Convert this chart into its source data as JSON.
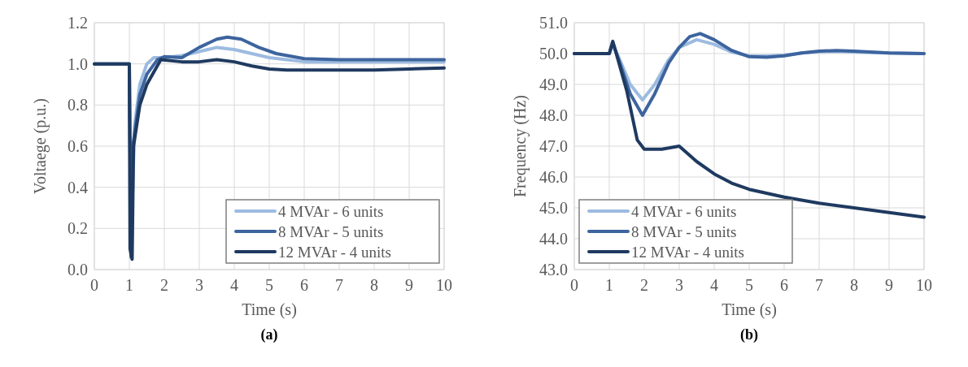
{
  "chart_data": [
    {
      "type": "line",
      "xlabel": "Time (s)",
      "ylabel": "Voltaege (p.u.)",
      "annotations": [
        "(a)"
      ],
      "xlim": [
        0,
        10
      ],
      "xticks": [
        0,
        1,
        2,
        3,
        4,
        5,
        6,
        7,
        8,
        9,
        10
      ],
      "ylim": [
        0,
        1.2
      ],
      "yticks": [
        {
          "value": 0,
          "label": "0.0"
        },
        {
          "value": 0.2,
          "label": "0.2"
        },
        {
          "value": 0.4,
          "label": "0.4"
        },
        {
          "value": 0.6,
          "label": "0.6"
        },
        {
          "value": 0.8,
          "label": "0.8"
        },
        {
          "value": 1,
          "label": "1.0"
        },
        {
          "value": 1.2,
          "label": "1.2"
        }
      ],
      "grid": true,
      "legend": "bottom right",
      "series": [
        {
          "name": "4 MVAr - 6 units",
          "color": "#9dbbe0",
          "x": [
            0,
            1,
            1.05,
            1.08,
            1.15,
            1.3,
            1.5,
            1.7,
            2,
            2.5,
            3,
            3.5,
            4,
            4.5,
            5,
            5.5,
            6,
            7,
            8,
            9,
            10
          ],
          "values": [
            1,
            1,
            0.1,
            0.3,
            0.7,
            0.9,
            1.0,
            1.03,
            1.03,
            1.04,
            1.06,
            1.08,
            1.07,
            1.05,
            1.03,
            1.02,
            1.01,
            1.01,
            1.01,
            1.01,
            1.01
          ]
        },
        {
          "name": "8 MVAr - 5 units",
          "color": "#3d649e",
          "x": [
            0,
            1,
            1.05,
            1.1,
            1.3,
            1.5,
            1.8,
            2,
            2.5,
            3,
            3.5,
            3.8,
            4.2,
            4.7,
            5.2,
            6,
            7,
            8,
            9,
            10
          ],
          "values": [
            1,
            1,
            0.06,
            0.6,
            0.85,
            0.95,
            1.02,
            1.035,
            1.03,
            1.08,
            1.12,
            1.13,
            1.12,
            1.08,
            1.05,
            1.025,
            1.02,
            1.02,
            1.02,
            1.02
          ]
        },
        {
          "name": "12 MVAr - 4 units",
          "color": "#1f3a60",
          "x": [
            0,
            1,
            1.02,
            1.08,
            1.12,
            1.3,
            1.5,
            1.7,
            1.9,
            2.5,
            3,
            3.5,
            4,
            4.5,
            5,
            5.5,
            6,
            7,
            8,
            9,
            10
          ],
          "values": [
            1,
            1,
            0.1,
            0.05,
            0.6,
            0.8,
            0.9,
            0.96,
            1.02,
            1.01,
            1.01,
            1.02,
            1.01,
            0.99,
            0.975,
            0.97,
            0.97,
            0.97,
            0.97,
            0.975,
            0.98
          ]
        }
      ]
    },
    {
      "type": "line",
      "xlabel": "Time (s)",
      "ylabel": "Frequency (Hz)",
      "annotations": [
        "(b)"
      ],
      "xlim": [
        0,
        10
      ],
      "xticks": [
        0,
        1,
        2,
        3,
        4,
        5,
        6,
        7,
        8,
        9,
        10
      ],
      "ylim": [
        43,
        51
      ],
      "yticks": [
        {
          "value": 43,
          "label": "43.0"
        },
        {
          "value": 44,
          "label": "44.0"
        },
        {
          "value": 45,
          "label": "45.0"
        },
        {
          "value": 46,
          "label": "46.0"
        },
        {
          "value": 47,
          "label": "47.0"
        },
        {
          "value": 48,
          "label": "48.0"
        },
        {
          "value": 49,
          "label": "49.0"
        },
        {
          "value": 50,
          "label": "50.0"
        },
        {
          "value": 51,
          "label": "51.0"
        }
      ],
      "grid": true,
      "legend": "bottom left",
      "series": [
        {
          "name": "4 MVAr - 6 units",
          "color": "#9dbbe0",
          "x": [
            0,
            1,
            1.1,
            1.3,
            1.6,
            1.95,
            2.3,
            2.7,
            3,
            3.5,
            4,
            4.5,
            5,
            5.5,
            6,
            6.5,
            7,
            7.5,
            8,
            9,
            10
          ],
          "values": [
            50,
            50,
            50.3,
            49.8,
            49.0,
            48.5,
            49.0,
            49.8,
            50.2,
            50.45,
            50.3,
            50.05,
            49.92,
            49.92,
            49.95,
            50.02,
            50.06,
            50.07,
            50.05,
            50.02,
            50.0
          ]
        },
        {
          "name": "8 MVAr - 5 units",
          "color": "#3d649e",
          "x": [
            0,
            1,
            1.1,
            1.3,
            1.6,
            1.95,
            2.3,
            2.7,
            3,
            3.3,
            3.6,
            4,
            4.5,
            5,
            5.5,
            6,
            6.5,
            7,
            7.5,
            8,
            9,
            10
          ],
          "values": [
            50,
            50,
            50.35,
            49.7,
            48.7,
            48.0,
            48.7,
            49.7,
            50.2,
            50.55,
            50.65,
            50.45,
            50.1,
            49.9,
            49.88,
            49.93,
            50.02,
            50.08,
            50.1,
            50.08,
            50.02,
            50.0
          ]
        },
        {
          "name": "12 MVAr - 4 units",
          "color": "#1f3a60",
          "x": [
            0,
            1,
            1.1,
            1.2,
            1.5,
            1.8,
            2,
            2.5,
            3,
            3.5,
            4,
            4.5,
            5,
            6,
            7,
            8,
            9,
            10
          ],
          "values": [
            50,
            50,
            50.4,
            50.0,
            48.8,
            47.2,
            46.9,
            46.9,
            47.0,
            46.5,
            46.1,
            45.8,
            45.6,
            45.35,
            45.15,
            45.0,
            44.85,
            44.7
          ]
        }
      ]
    }
  ]
}
